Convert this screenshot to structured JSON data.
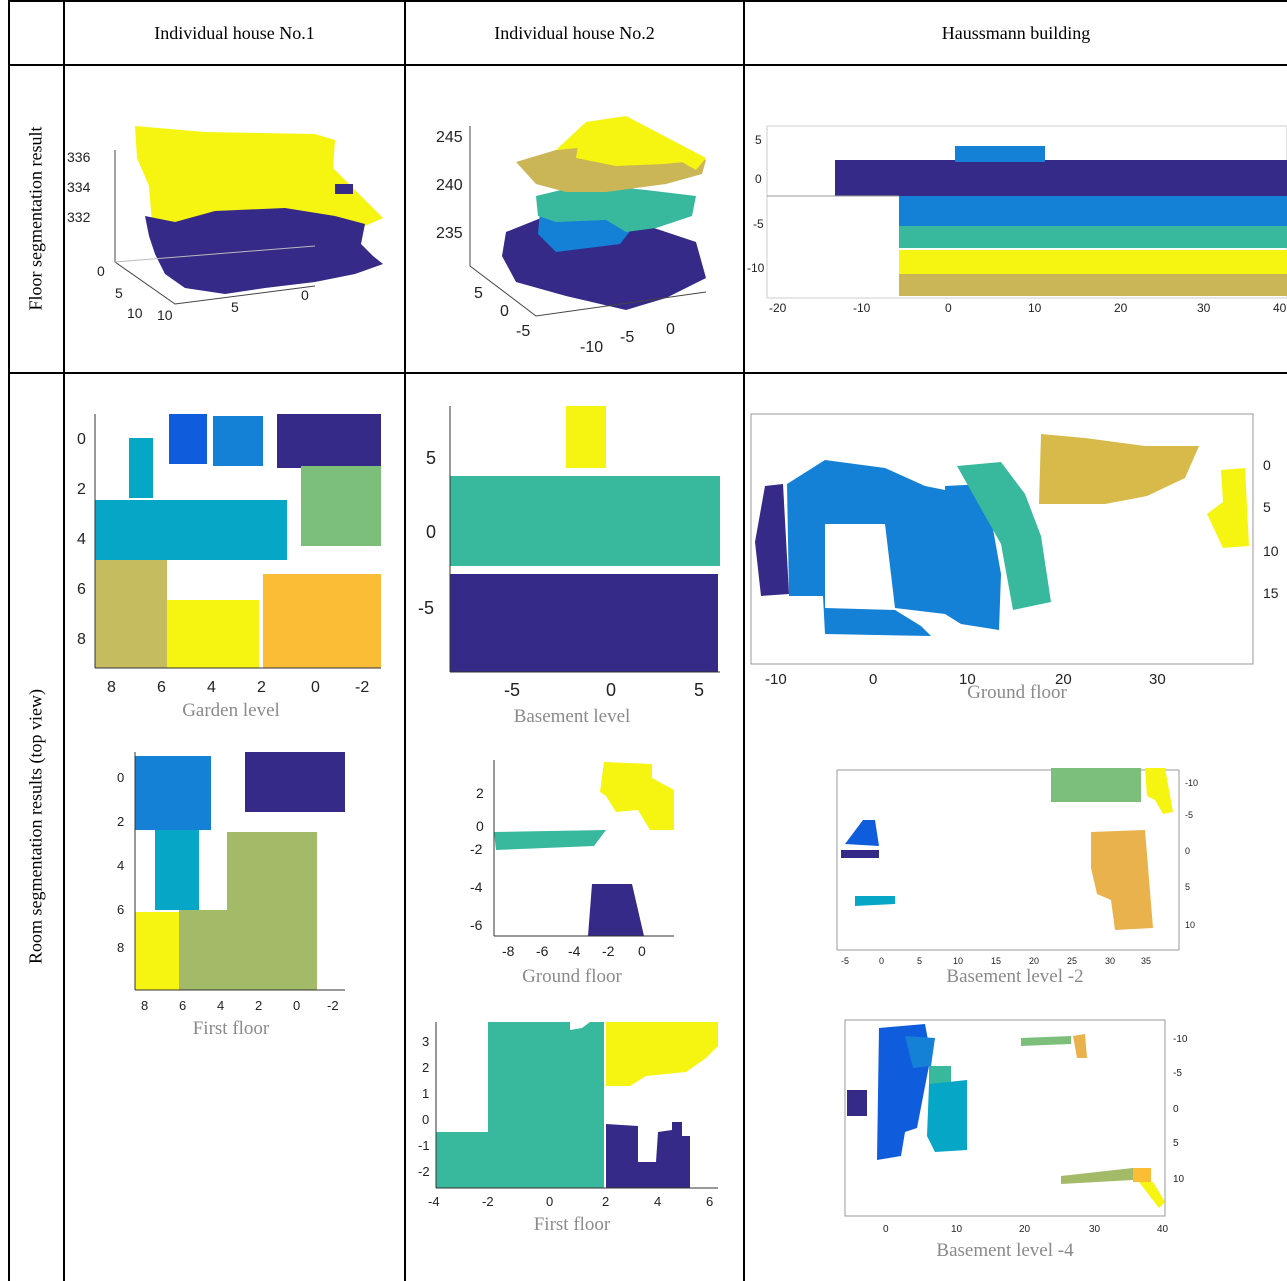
{
  "headers": [
    "Individual house No.1",
    "Individual house No.2",
    "Haussmann building"
  ],
  "row_labels": [
    "Floor segmentation result",
    "Room segmentation results (top view)"
  ],
  "colors": {
    "navy": "#352A87",
    "blue": "#0F5CDD",
    "lightblue": "#1481D6",
    "cyan": "#06A7C6",
    "teal": "#38B99E",
    "green": "#7CBF7B",
    "olive": "#C4BC5E",
    "gold": "#D7BA4A",
    "orange": "#FBBC36",
    "yellow": "#F5F511",
    "khaki": "#CBB657",
    "sage": "#A3BA68"
  },
  "panels": {
    "h1_floor": {
      "y_ticks": [
        "336",
        "334",
        "332"
      ],
      "x_ticks": [
        "0",
        "5",
        "10"
      ],
      "z_ticks": [
        "10",
        "5",
        "0"
      ]
    },
    "h2_floor": {
      "y_ticks": [
        "245",
        "240",
        "235"
      ],
      "x_ticks": [
        "5",
        "0",
        "-5"
      ],
      "z_ticks": [
        "-10",
        "-5",
        "0"
      ]
    },
    "hb_floor": {
      "y_ticks": [
        "5",
        "0",
        "-5",
        "-10"
      ],
      "x_ticks": [
        "-20",
        "-10",
        "0",
        "10",
        "20",
        "30",
        "40"
      ]
    },
    "h1_garden": {
      "y_ticks": [
        "0",
        "2",
        "4",
        "6",
        "8"
      ],
      "x_ticks": [
        "8",
        "6",
        "4",
        "2",
        "0",
        "-2"
      ],
      "caption": "Garden level"
    },
    "h1_first": {
      "y_ticks": [
        "0",
        "2",
        "4",
        "6",
        "8"
      ],
      "x_ticks": [
        "8",
        "6",
        "4",
        "2",
        "0",
        "-2"
      ],
      "caption": "First floor"
    },
    "h2_basement": {
      "y_ticks": [
        "5",
        "0",
        "-5"
      ],
      "x_ticks": [
        "-5",
        "0",
        "5"
      ],
      "caption": "Basement level"
    },
    "h2_ground": {
      "y_ticks": [
        "2",
        "0",
        "-2",
        "-4",
        "-6"
      ],
      "x_ticks": [
        "-8",
        "-6",
        "-4",
        "-2",
        "0"
      ],
      "caption": "Ground floor"
    },
    "h2_first": {
      "y_ticks": [
        "3",
        "2",
        "1",
        "0",
        "-1",
        "-2"
      ],
      "x_ticks": [
        "-4",
        "-2",
        "0",
        "2",
        "4",
        "6"
      ],
      "caption": "First floor"
    },
    "hb_ground": {
      "y_ticks": [
        "0",
        "5",
        "10",
        "15"
      ],
      "x_ticks": [
        "-10",
        "0",
        "10",
        "20",
        "30"
      ],
      "caption": "Ground floor"
    },
    "hb_b2": {
      "y_ticks": [
        "-10",
        "-5",
        "0",
        "5",
        "10"
      ],
      "x_ticks": [
        "-5",
        "0",
        "5",
        "10",
        "15",
        "20",
        "25",
        "30",
        "35"
      ],
      "caption": "Basement level -2"
    },
    "hb_b4": {
      "y_ticks": [
        "-10",
        "-5",
        "0",
        "5",
        "10"
      ],
      "x_ticks": [
        "0",
        "10",
        "20",
        "30",
        "40"
      ],
      "caption": "Basement level -4"
    }
  }
}
